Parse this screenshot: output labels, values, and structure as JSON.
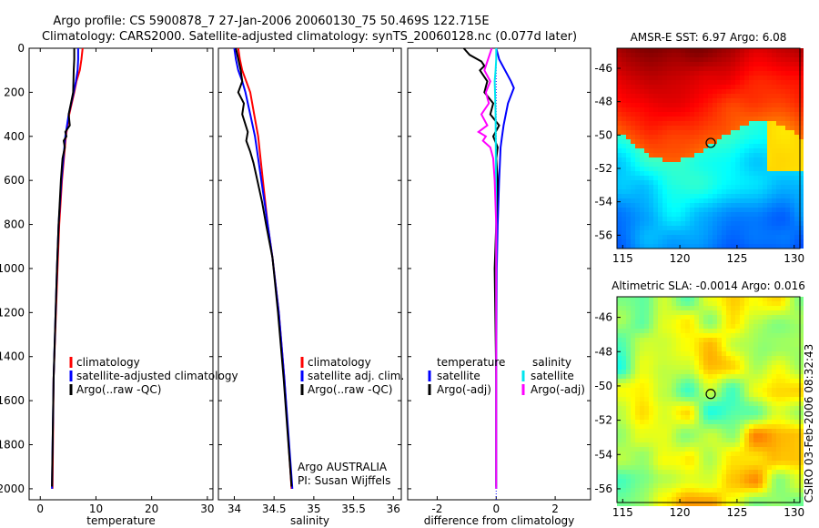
{
  "title": {
    "line1": "Argo profile: CS 5900878_7 27-Jan-2006 20060130_75 50.469S 122.715E",
    "line2": "Climatology: CARS2000. Satellite-adjusted climatology: synTS_20060128.nc (0.077d later)"
  },
  "side_label": "CSIRO 03-Feb-2006 08:32:43",
  "colors": {
    "climatology": "#ff0000",
    "satellite": "#0000ff",
    "argo": "#000000",
    "sat_sal": "#00e5ee",
    "argo_sal": "#ff00ff"
  },
  "chart_data": [
    {
      "id": "temperature",
      "type": "line",
      "xlabel": "temperature",
      "ylabel": "",
      "xlim": [
        -2,
        31
      ],
      "ylim": [
        2050,
        0
      ],
      "xticks": [
        "0",
        "10",
        "20",
        "30"
      ],
      "xtick_values": [
        0,
        10,
        20,
        30
      ],
      "yticks": [
        "0",
        "200",
        "400",
        "600",
        "800",
        "1000",
        "1200",
        "1400",
        "1600",
        "1800",
        "2000"
      ],
      "ytick_values": [
        0,
        200,
        400,
        600,
        800,
        1000,
        1200,
        1400,
        1600,
        1800,
        2000
      ],
      "legend_position": "lower-middle",
      "legend": [
        "climatology",
        "satellite-adjusted climatology",
        "Argo(..raw -QC)"
      ],
      "series": [
        {
          "name": "climatology",
          "color": "#ff0000",
          "y": [
            0,
            50,
            100,
            150,
            200,
            300,
            400,
            600,
            800,
            1000,
            1500,
            2000
          ],
          "x": [
            7.6,
            7.4,
            7.1,
            6.5,
            6.1,
            5.2,
            4.6,
            3.9,
            3.4,
            3.1,
            2.4,
            2.2
          ]
        },
        {
          "name": "satellite-adjusted climatology",
          "color": "#0000ff",
          "y": [
            0,
            50,
            100,
            150,
            200,
            300,
            400,
            600,
            800,
            1000,
            1500,
            2000
          ],
          "x": [
            6.8,
            6.8,
            6.7,
            6.4,
            6.0,
            5.1,
            4.5,
            3.8,
            3.3,
            3.0,
            2.4,
            2.1
          ]
        },
        {
          "name": "Argo(..raw -QC)",
          "color": "#000000",
          "y": [
            0,
            50,
            100,
            200,
            300,
            350,
            380,
            400,
            420,
            450,
            500,
            600,
            800,
            1000,
            1500,
            1990
          ],
          "x": [
            6.1,
            6.1,
            6.0,
            5.9,
            5.1,
            5.3,
            4.5,
            4.7,
            4.2,
            4.4,
            4.0,
            3.7,
            3.3,
            3.0,
            2.4,
            2.1
          ]
        }
      ]
    },
    {
      "id": "salinity",
      "type": "line",
      "xlabel": "salinity",
      "ylabel": "",
      "xlim": [
        33.8,
        36.1
      ],
      "ylim": [
        2050,
        0
      ],
      "xticks": [
        "34",
        "34.5",
        "35",
        "35.5",
        "36"
      ],
      "xtick_values": [
        34,
        34.5,
        35,
        35.5,
        36
      ],
      "legend_position": "lower-middle",
      "legend": [
        "climatology",
        "satellite adj. clim.",
        "Argo(..raw -QC)"
      ],
      "annotations": [
        "Argo AUSTRALIA",
        "PI: Susan Wijffels"
      ],
      "series": [
        {
          "name": "climatology",
          "color": "#ff0000",
          "y": [
            0,
            50,
            100,
            150,
            200,
            300,
            400,
            500,
            600,
            800,
            950,
            1200,
            1500,
            2000
          ],
          "x": [
            34.05,
            34.07,
            34.1,
            34.15,
            34.2,
            34.25,
            34.3,
            34.33,
            34.36,
            34.42,
            34.48,
            34.56,
            34.63,
            34.72
          ]
        },
        {
          "name": "satellite adj. clim.",
          "color": "#0000ff",
          "y": [
            0,
            50,
            100,
            150,
            200,
            300,
            400,
            500,
            600,
            800,
            950,
            1200,
            1500,
            2000
          ],
          "x": [
            34.0,
            34.02,
            34.05,
            34.1,
            34.14,
            34.2,
            34.26,
            34.3,
            34.34,
            34.42,
            34.48,
            34.56,
            34.63,
            34.73
          ]
        },
        {
          "name": "Argo(..raw -QC)",
          "color": "#000000",
          "y": [
            0,
            100,
            150,
            200,
            250,
            300,
            380,
            420,
            470,
            520,
            600,
            700,
            800,
            950,
            1200,
            1500,
            1990
          ],
          "x": [
            34.02,
            34.08,
            34.1,
            34.05,
            34.12,
            34.1,
            34.17,
            34.15,
            34.2,
            34.24,
            34.29,
            34.35,
            34.4,
            34.48,
            34.55,
            34.62,
            34.72
          ]
        }
      ]
    },
    {
      "id": "difference",
      "type": "line",
      "xlabel": "difference from climatology",
      "ylabel": "",
      "xlim": [
        -3,
        3.2
      ],
      "ylim": [
        2050,
        0
      ],
      "xticks": [
        "-2",
        "0",
        "2"
      ],
      "xtick_values": [
        -2,
        0,
        2
      ],
      "legend_position": "lower-middle",
      "legend": [
        {
          "heading": "temperature",
          "items": [
            "satellite",
            "Argo(-adj)"
          ]
        },
        {
          "heading": "salinity",
          "items": [
            "satellite",
            "Argo(-adj)"
          ]
        }
      ],
      "series": [
        {
          "name": "temperature satellite",
          "color": "#0000ff",
          "y": [
            0,
            50,
            100,
            150,
            180,
            250,
            350,
            400,
            450,
            600,
            800,
            1000,
            1500,
            2000
          ],
          "x": [
            0.0,
            0.1,
            0.3,
            0.5,
            0.6,
            0.4,
            0.25,
            0.2,
            0.15,
            0.1,
            0.05,
            0.02,
            0.0,
            0.0
          ]
        },
        {
          "name": "temperature Argo(-adj)",
          "color": "#000000",
          "y": [
            0,
            30,
            60,
            80,
            100,
            150,
            200,
            250,
            300,
            350,
            400,
            450,
            500,
            600,
            800,
            1000,
            1500,
            1900,
            1990
          ],
          "x": [
            -1.1,
            -0.9,
            -0.5,
            -0.4,
            -0.55,
            -0.3,
            -0.4,
            -0.1,
            -0.2,
            0.1,
            -0.1,
            0.05,
            0.0,
            0.05,
            0.0,
            -0.05,
            0.0,
            0.0,
            0.0
          ]
        },
        {
          "name": "salinity satellite",
          "color": "#00e5ee",
          "y": [
            0,
            50,
            100,
            150,
            200,
            300,
            500,
            800,
            1200,
            1600,
            2000
          ],
          "x": [
            0.0,
            0.0,
            -0.02,
            -0.05,
            -0.04,
            -0.02,
            -0.01,
            0.0,
            0.0,
            0.0,
            0.0
          ]
        },
        {
          "name": "salinity Argo(-adj)",
          "color": "#ff00ff",
          "y": [
            0,
            100,
            150,
            200,
            250,
            300,
            350,
            380,
            400,
            420,
            450,
            500,
            600,
            800,
            1000,
            1500,
            2000
          ],
          "x": [
            -0.15,
            -0.4,
            -0.2,
            -0.35,
            -0.25,
            -0.5,
            -0.3,
            -0.6,
            -0.35,
            -0.45,
            -0.2,
            -0.1,
            -0.05,
            0.0,
            0.0,
            0.0,
            0.0
          ]
        }
      ]
    },
    {
      "id": "sst_map",
      "type": "heatmap",
      "title": "AMSR-E SST: 6.97 Argo: 6.08",
      "xlim": [
        114.5,
        130.5
      ],
      "ylim": [
        -56.8,
        -44.8
      ],
      "xticks": [
        "115",
        "120",
        "125",
        "130"
      ],
      "xtick_values": [
        115,
        120,
        125,
        130
      ],
      "yticks": [
        "-46",
        "-48",
        "-50",
        "-52",
        "-54",
        "-56"
      ],
      "ytick_values": [
        -46,
        -48,
        -50,
        -52,
        -54,
        -56
      ],
      "marker": {
        "lon": 122.7,
        "lat": -50.47
      }
    },
    {
      "id": "sla_map",
      "type": "heatmap",
      "title": "Altimetric SLA: -0.0014 Argo: 0.016",
      "xlim": [
        114.5,
        130.5
      ],
      "ylim": [
        -56.8,
        -44.8
      ],
      "xticks": [
        "115",
        "120",
        "125",
        "130"
      ],
      "xtick_values": [
        115,
        120,
        125,
        130
      ],
      "yticks": [
        "-46",
        "-48",
        "-50",
        "-52",
        "-54",
        "-56"
      ],
      "ytick_values": [
        -46,
        -48,
        -50,
        -52,
        -54,
        -56
      ],
      "marker": {
        "lon": 122.7,
        "lat": -50.47
      }
    }
  ]
}
